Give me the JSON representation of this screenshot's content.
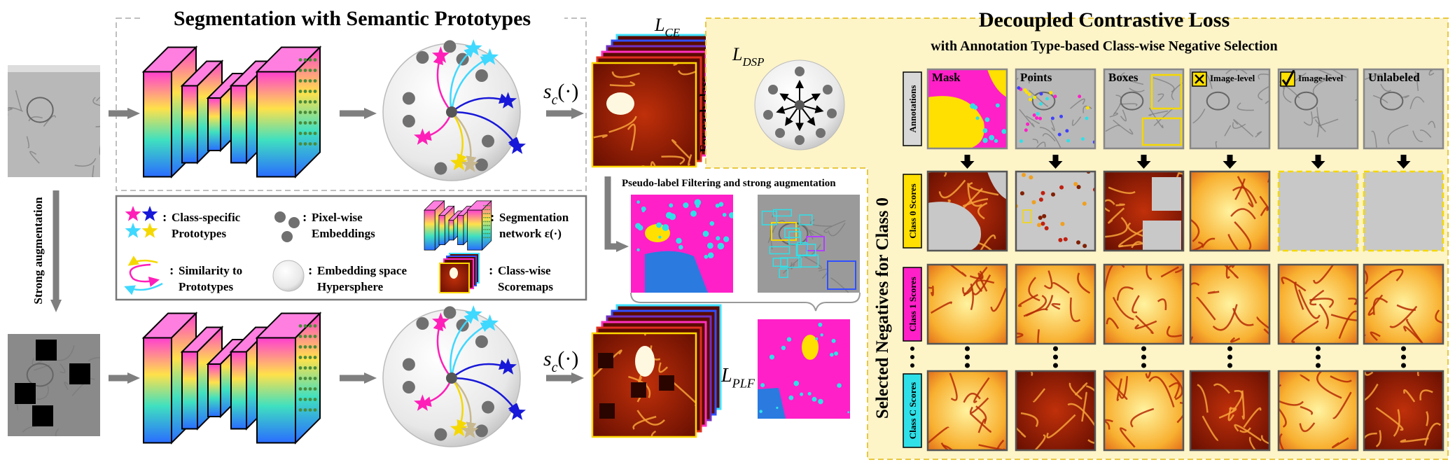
{
  "segmentation": {
    "title": "Segmentation with Semantic Prototypes",
    "score_function": {
      "symbol": "s",
      "subscript": "c",
      "argument": "(·)"
    },
    "strong_augmentation": "Strong augmentation",
    "for_each_class": "For each class",
    "pseudo_label_caption": "Pseudo-label Filtering and strong augmentation",
    "losses": {
      "ce": {
        "symbol": "L",
        "subscript": "CE"
      },
      "dsp": {
        "symbol": "L",
        "subscript": "DSP"
      },
      "plf": {
        "symbol": "L",
        "subscript": "PLF"
      }
    },
    "legend": {
      "separator": ":",
      "items": [
        {
          "lines": [
            "Class-specific",
            "Prototypes"
          ]
        },
        {
          "lines": [
            "Pixel-wise",
            "Embeddings"
          ]
        },
        {
          "lines": [
            "Segmentation",
            "network ε(·)"
          ]
        },
        {
          "lines": [
            "Similarity to",
            "Prototypes"
          ]
        },
        {
          "lines": [
            "Embedding space",
            "Hypersphere"
          ]
        },
        {
          "lines": [
            "Class-wise",
            "Scoremaps"
          ]
        }
      ]
    }
  },
  "decoupled_loss": {
    "title": "Decoupled Contrastive Loss",
    "subtitle": "with Annotation Type-based Class-wise Negative Selection",
    "side_label": "Selected Negatives for Class 0",
    "row_labels": [
      "Annotations",
      "Class 0 Scores",
      "Class 1 Scores",
      "Class C Scores"
    ],
    "columns": [
      "Mask",
      "Points",
      "Boxes",
      "Image-level",
      "Image-level",
      "Unlabeled"
    ]
  }
}
